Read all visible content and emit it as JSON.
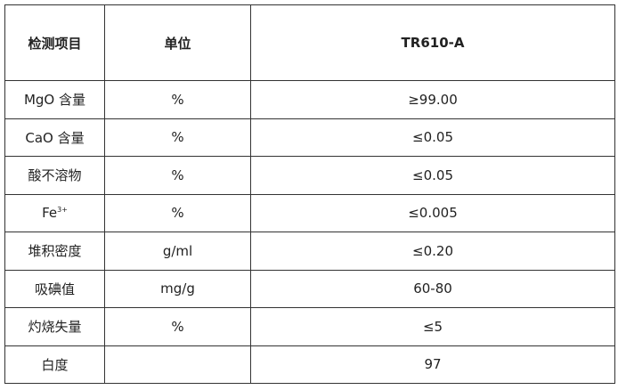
{
  "table": {
    "headers": [
      "检测项目",
      "单位",
      "TR610-A"
    ],
    "rows": [
      {
        "item": "MgO 含量",
        "unit": "%",
        "value": "≥99.00"
      },
      {
        "item": "CaO 含量",
        "unit": "%",
        "value": "≤0.05"
      },
      {
        "item": "酸不溶物",
        "unit": "%",
        "value": "≤0.05"
      },
      {
        "item": "Fe",
        "item_sup": "3+",
        "unit": "%",
        "value": "≤0.005"
      },
      {
        "item": "堆积密度",
        "unit": "g/ml",
        "value": "≤0.20"
      },
      {
        "item": "吸碘值",
        "unit": "mg/g",
        "value": "60-80"
      },
      {
        "item": "灼烧失量",
        "unit": "%",
        "value": "≤5"
      },
      {
        "item": "白度",
        "unit": "",
        "value": "97"
      }
    ]
  }
}
